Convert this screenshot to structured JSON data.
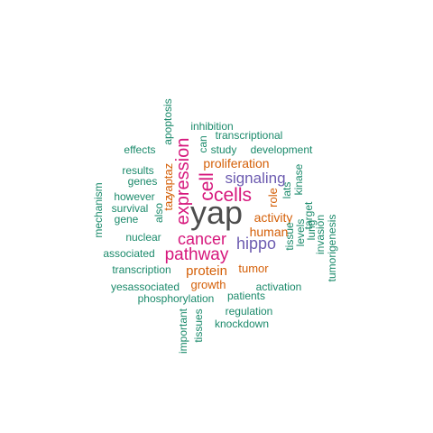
{
  "colors": {
    "dark": "#4d4d4d",
    "magenta": "#d6177c",
    "purple": "#6c5bb0",
    "orange": "#d45f07",
    "teal": "#1b8a6b"
  },
  "words": [
    {
      "text": "yap",
      "color": "dark",
      "vertical": false
    },
    {
      "text": "cells",
      "color": "magenta",
      "vertical": false
    },
    {
      "text": "pathway",
      "color": "magenta",
      "vertical": false
    },
    {
      "text": "cancer",
      "color": "magenta",
      "vertical": false
    },
    {
      "text": "expression",
      "color": "magenta",
      "vertical": true
    },
    {
      "text": "cell",
      "color": "magenta",
      "vertical": true
    },
    {
      "text": "signaling",
      "color": "purple",
      "vertical": false
    },
    {
      "text": "hippo",
      "color": "purple",
      "vertical": false
    },
    {
      "text": "protein",
      "color": "orange",
      "vertical": false
    },
    {
      "text": "proliferation",
      "color": "orange",
      "vertical": false
    },
    {
      "text": "activity",
      "color": "orange",
      "vertical": false
    },
    {
      "text": "human",
      "color": "orange",
      "vertical": false
    },
    {
      "text": "tumor",
      "color": "orange",
      "vertical": false
    },
    {
      "text": "growth",
      "color": "orange",
      "vertical": false
    },
    {
      "text": "role",
      "color": "orange",
      "vertical": true
    },
    {
      "text": "taz",
      "color": "orange",
      "vertical": true
    },
    {
      "text": "yaptaz",
      "color": "orange",
      "vertical": true
    },
    {
      "text": "inhibition",
      "color": "teal",
      "vertical": false
    },
    {
      "text": "transcriptional",
      "color": "teal",
      "vertical": false
    },
    {
      "text": "study",
      "color": "teal",
      "vertical": false
    },
    {
      "text": "development",
      "color": "teal",
      "vertical": false
    },
    {
      "text": "effects",
      "color": "teal",
      "vertical": false
    },
    {
      "text": "results",
      "color": "teal",
      "vertical": false
    },
    {
      "text": "genes",
      "color": "teal",
      "vertical": false
    },
    {
      "text": "however",
      "color": "teal",
      "vertical": false
    },
    {
      "text": "survival",
      "color": "teal",
      "vertical": false
    },
    {
      "text": "gene",
      "color": "teal",
      "vertical": false
    },
    {
      "text": "nuclear",
      "color": "teal",
      "vertical": false
    },
    {
      "text": "associated",
      "color": "teal",
      "vertical": false
    },
    {
      "text": "transcription",
      "color": "teal",
      "vertical": false
    },
    {
      "text": "yesassociated",
      "color": "teal",
      "vertical": false
    },
    {
      "text": "phosphorylation",
      "color": "teal",
      "vertical": false
    },
    {
      "text": "patients",
      "color": "teal",
      "vertical": false
    },
    {
      "text": "activation",
      "color": "teal",
      "vertical": false
    },
    {
      "text": "regulation",
      "color": "teal",
      "vertical": false
    },
    {
      "text": "knockdown",
      "color": "teal",
      "vertical": false
    },
    {
      "text": "apoptosis",
      "color": "teal",
      "vertical": true
    },
    {
      "text": "can",
      "color": "teal",
      "vertical": true
    },
    {
      "text": "mechanism",
      "color": "teal",
      "vertical": true
    },
    {
      "text": "also",
      "color": "teal",
      "vertical": true
    },
    {
      "text": "lats",
      "color": "teal",
      "vertical": true
    },
    {
      "text": "kinase",
      "color": "teal",
      "vertical": true
    },
    {
      "text": "tissue",
      "color": "teal",
      "vertical": true
    },
    {
      "text": "levels",
      "color": "teal",
      "vertical": true
    },
    {
      "text": "lung",
      "color": "teal",
      "vertical": true
    },
    {
      "text": "target",
      "color": "teal",
      "vertical": true
    },
    {
      "text": "invasion",
      "color": "teal",
      "vertical": true
    },
    {
      "text": "tumorigenesis",
      "color": "teal",
      "vertical": true
    },
    {
      "text": "important",
      "color": "teal",
      "vertical": true
    },
    {
      "text": "tissues",
      "color": "teal",
      "vertical": true
    }
  ]
}
